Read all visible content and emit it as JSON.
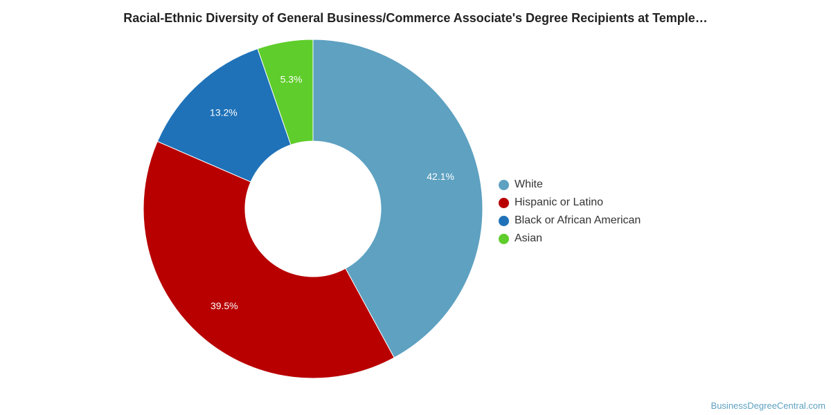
{
  "chart_data": {
    "type": "pie",
    "variant": "donut",
    "title": "Racial-Ethnic Diversity of General Business/Commerce Associate's Degree Recipients at Temple…",
    "slices": [
      {
        "label": "White",
        "value": 42.1,
        "display": "42.1%",
        "color": "#5ea1c1"
      },
      {
        "label": "Hispanic or Latino",
        "value": 39.5,
        "display": "39.5%",
        "color": "#b80000"
      },
      {
        "label": "Black or African American",
        "value": 13.2,
        "display": "13.2%",
        "color": "#1f72b8"
      },
      {
        "label": "Asian",
        "value": 5.3,
        "display": "5.3%",
        "color": "#5fcd2b"
      }
    ],
    "legend_position": "right"
  },
  "watermark": "BusinessDegreeCentral.com"
}
